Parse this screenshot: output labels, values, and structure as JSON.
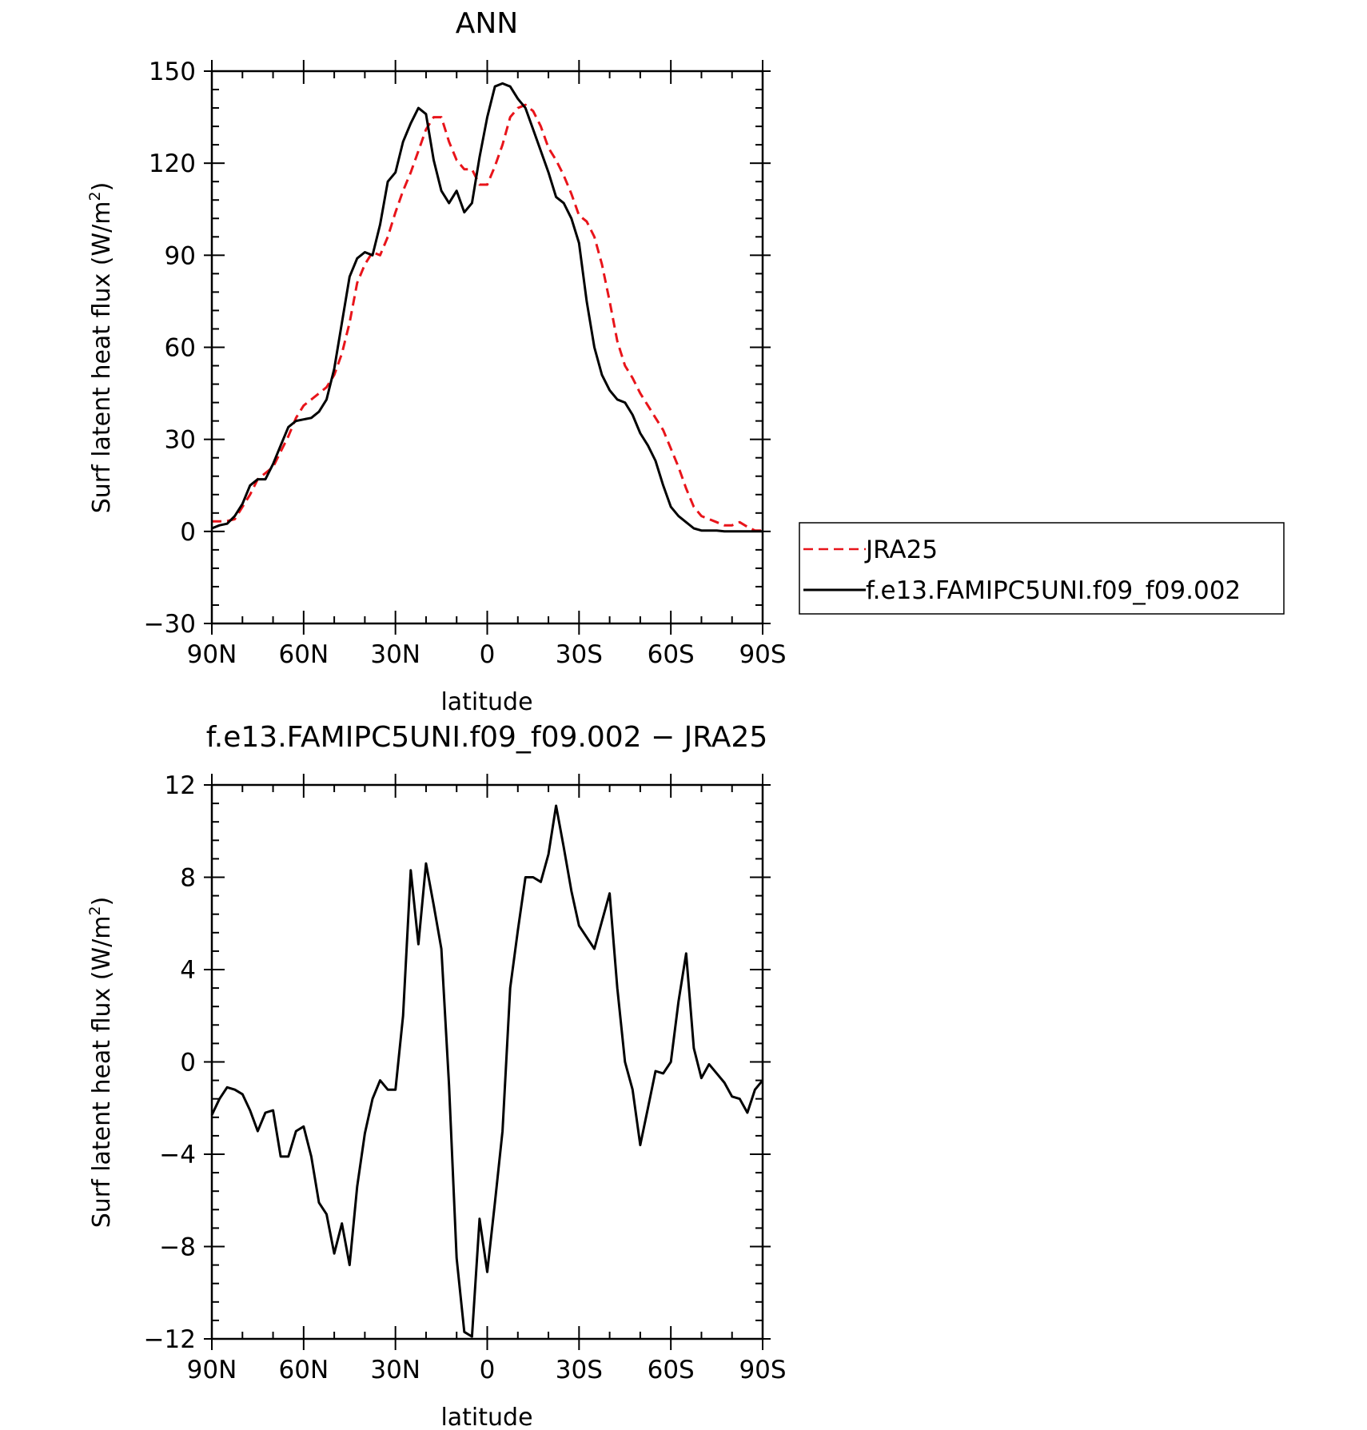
{
  "figure_titles": {
    "top": "ANN",
    "bottom": "f.e13.FAMIPC5UNI.f09_f09.002 − JRA25"
  },
  "legend": {
    "items": [
      {
        "label": "JRA25",
        "color": "#e8141a",
        "dash": "dashed"
      },
      {
        "label": "f.e13.FAMIPC5UNI.f09_f09.002",
        "color": "#000000",
        "dash": "solid"
      }
    ]
  },
  "chart_data": [
    {
      "type": "line",
      "title": "ANN",
      "xlabel": "latitude",
      "ylabel": "Surf latent heat flux (W/m²)",
      "ylabel_main": "Surf latent heat flux (W/m",
      "ylabel_sup": "2",
      "ylabel_close": ")",
      "xlim": [
        90,
        -90
      ],
      "ylim": [
        -30,
        150
      ],
      "yticks": [
        -30,
        0,
        30,
        60,
        90,
        120,
        150
      ],
      "ytick_labels": [
        "−30",
        "0",
        "30",
        "60",
        "90",
        "120",
        "150"
      ],
      "xticks": [
        90,
        60,
        30,
        0,
        -30,
        -60,
        -90
      ],
      "xtick_labels": [
        "90N",
        "60N",
        "30N",
        "0",
        "30S",
        "60S",
        "90S"
      ],
      "legend_position": "right",
      "series": [
        {
          "name": "JRA25",
          "color": "#e8141a",
          "dash": "dashed",
          "x": [
            90,
            87.5,
            85,
            82.5,
            80,
            77.5,
            75,
            72.5,
            70,
            67.5,
            65,
            62.5,
            60,
            57.5,
            55,
            52.5,
            50,
            47.5,
            45,
            42.5,
            40,
            37.5,
            35,
            32.5,
            30,
            27.5,
            25,
            22.5,
            20,
            17.5,
            15,
            12.5,
            10,
            7.5,
            5,
            2.5,
            0,
            -2.5,
            -5,
            -7.5,
            -10,
            -12.5,
            -15,
            -17.5,
            -20,
            -22.5,
            -25,
            -27.5,
            -30,
            -32.5,
            -35,
            -37.5,
            -40,
            -42.5,
            -45,
            -47.5,
            -50,
            -52.5,
            -55,
            -57.5,
            -60,
            -62.5,
            -65,
            -67.5,
            -70,
            -72.5,
            -75,
            -77.5,
            -80,
            -82.5,
            -85,
            -87.5,
            -90
          ],
          "y": [
            3.3,
            3.3,
            3.4,
            4.0,
            8,
            12,
            17,
            19,
            21,
            26,
            31,
            37,
            41,
            43,
            45,
            47,
            51,
            58,
            68,
            81,
            87,
            91,
            90,
            96,
            104,
            111,
            117,
            124,
            131,
            135,
            135,
            127,
            121,
            118,
            118,
            113,
            113,
            119,
            126,
            135,
            138,
            139,
            137,
            132,
            125,
            121,
            116,
            110,
            103,
            101,
            96,
            87,
            75,
            62,
            54,
            50,
            45,
            41,
            37,
            33,
            27,
            21,
            14,
            8,
            5,
            4,
            3,
            2,
            2,
            3,
            1.5,
            0.3,
            0.3
          ],
          "note_x": ""
        },
        {
          "name": "f.e13.FAMIPC5UNI.f09_f09.002",
          "color": "#000000",
          "dash": "solid",
          "x": [
            90,
            87.5,
            85,
            82.5,
            80,
            77.5,
            75,
            72.5,
            70,
            67.5,
            65,
            62.5,
            60,
            57.5,
            55,
            52.5,
            50,
            47.5,
            45,
            42.5,
            40,
            37.5,
            35,
            32.5,
            30,
            27.5,
            25,
            22.5,
            20,
            17.5,
            15,
            12.5,
            10,
            7.5,
            5,
            2.5,
            0,
            -2.5,
            -5,
            -7.5,
            -10,
            -12.5,
            -15,
            -17.5,
            -20,
            -22.5,
            -25,
            -27.5,
            -30,
            -32.5,
            -35,
            -37.5,
            -40,
            -42.5,
            -45,
            -47.5,
            -50,
            -52.5,
            -55,
            -57.5,
            -60,
            -62.5,
            -65,
            -67.5,
            -70,
            -72.5,
            -75,
            -77.5,
            -80,
            -82.5,
            -85,
            -87.5,
            -90
          ],
          "y": [
            1,
            2,
            2.5,
            5,
            9,
            15,
            17,
            17,
            22,
            28,
            34,
            36,
            36.5,
            37,
            39,
            43,
            53,
            68,
            83,
            89,
            91,
            90,
            100,
            114,
            117,
            127,
            133,
            138,
            136,
            121,
            111,
            107,
            111,
            104,
            107,
            122,
            135,
            145,
            146,
            145,
            141,
            138,
            131,
            124,
            117,
            109,
            107,
            102,
            94,
            75,
            60,
            51,
            46,
            43,
            42,
            38,
            32,
            28,
            23,
            15,
            8,
            5,
            3,
            1,
            0.3,
            0.3,
            0.3,
            0,
            0,
            0,
            0,
            0,
            0
          ]
        }
      ]
    },
    {
      "type": "line",
      "title": "f.e13.FAMIPC5UNI.f09_f09.002 − JRA25",
      "xlabel": "latitude",
      "ylabel": "Surf latent heat flux (W/m²)",
      "ylabel_main": "Surf latent heat flux (W/m",
      "ylabel_sup": "2",
      "ylabel_close": ")",
      "xlim": [
        90,
        -90
      ],
      "ylim": [
        -12,
        12
      ],
      "yticks": [
        -12,
        -8,
        -4,
        0,
        4,
        8,
        12
      ],
      "ytick_labels": [
        "−12",
        "−8",
        "−4",
        "0",
        "4",
        "8",
        "12"
      ],
      "xticks": [
        90,
        60,
        30,
        0,
        -30,
        -60,
        -90
      ],
      "xtick_labels": [
        "90N",
        "60N",
        "30N",
        "0",
        "30S",
        "60S",
        "90S"
      ],
      "series": [
        {
          "color": "#000000",
          "dash": "solid",
          "x": [
            90,
            87.5,
            85,
            82.5,
            80,
            77.5,
            75,
            72.5,
            70,
            67.5,
            65,
            62.5,
            60,
            57.5,
            55,
            52.5,
            50,
            47.5,
            45,
            42.5,
            40,
            37.5,
            35,
            32.5,
            30,
            27.5,
            25,
            22.5,
            20,
            17.5,
            15,
            12.5,
            10,
            7.5,
            5,
            2.5,
            0,
            -2.5,
            -5,
            -7.5,
            -10,
            -12.5,
            -15,
            -17.5,
            -20,
            -22.5,
            -25,
            -27.5,
            -30,
            -32.5,
            -35,
            -37.5,
            -40,
            -42.5,
            -45,
            -47.5,
            -50,
            -52.5,
            -55,
            -57.5,
            -60,
            -62.5,
            -65,
            -67.5,
            -70,
            -72.5,
            -75,
            -77.5,
            -80,
            -82.5,
            -85,
            -87.5,
            -90
          ],
          "y": [
            -2.3,
            -1.6,
            -1.1,
            -1.2,
            -1.4,
            -2.1,
            -3.0,
            -2.2,
            -2.1,
            -4.1,
            -4.1,
            -3.0,
            -2.8,
            -4.1,
            -6.1,
            -6.6,
            -8.3,
            -7.0,
            -8.8,
            -5.4,
            -3.1,
            -1.6,
            -0.8,
            -1.2,
            -1.2,
            2.0,
            8.3,
            5.1,
            8.6,
            6.8,
            4.9,
            -1.0,
            -8.5,
            -11.7,
            -11.9,
            -6.8,
            -9.1,
            -6.1,
            -3.0,
            3.2,
            5.7,
            8.0,
            8.0,
            7.8,
            9.0,
            11.1,
            9.3,
            7.4,
            5.9,
            5.4,
            4.9,
            6.1,
            7.3,
            3.2,
            0.0,
            -1.2,
            -3.6,
            -2.0,
            -0.4,
            -0.5,
            0.0,
            2.6,
            4.7,
            0.6,
            -0.7,
            -0.1,
            -0.5,
            -0.9,
            -1.5,
            -1.6,
            -2.2,
            -1.2,
            -0.8
          ]
        }
      ]
    }
  ]
}
